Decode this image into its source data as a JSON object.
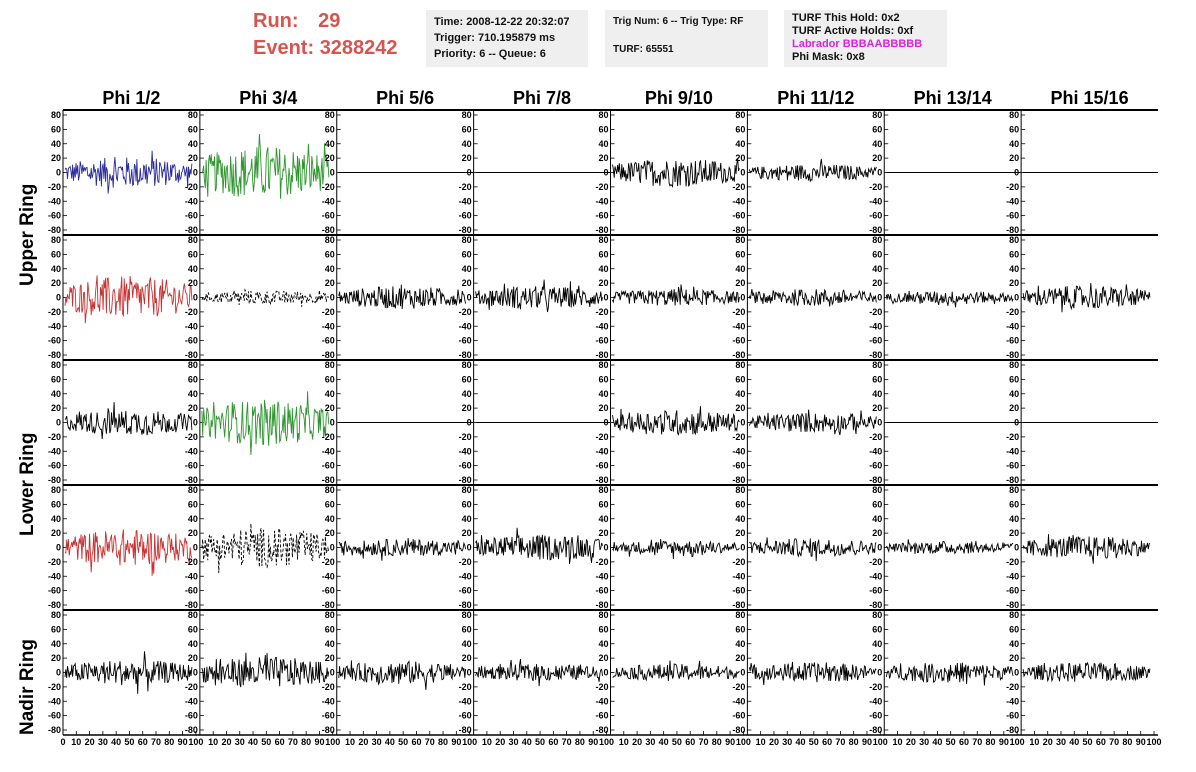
{
  "header": {
    "run_label": "Run:",
    "run_value": "29",
    "event_label": "Event:",
    "event_value": "3288242",
    "time": "Time: 2008-12-22 20:32:07",
    "trigger": "Trigger: 710.195879 ms",
    "priority": "Priority: 6 -- Queue: 6",
    "trig_num": "Trig Num: 6 -- Trig Type: RF",
    "turf": "TURF: 65551",
    "turf_this_hold": "TURF This Hold: 0x2",
    "turf_active_holds": "TURF Active Holds: 0xf",
    "labrador": "Labrador BBBAABBBBB",
    "phi_mask": "Phi Mask: 0x8"
  },
  "columns": [
    "Phi 1/2",
    "Phi 3/4",
    "Phi 5/6",
    "Phi 7/8",
    "Phi 9/10",
    "Phi 11/12",
    "Phi 13/14",
    "Phi 15/16"
  ],
  "ring_labels": [
    "Upper Ring",
    "Lower Ring",
    "Nadir Ring"
  ],
  "chart_data": {
    "type": "line",
    "title": "",
    "ylim": [
      -80,
      80
    ],
    "xlim": [
      0,
      100
    ],
    "y_ticks": [
      80,
      60,
      40,
      20,
      0,
      -20,
      -40,
      -60,
      -80
    ],
    "x_ticks": [
      0,
      10,
      20,
      30,
      40,
      50,
      60,
      70,
      80,
      90,
      100
    ],
    "grid": false,
    "colors": {
      "blue": "#2b2b9a",
      "green": "#2e962e",
      "red": "#c83232",
      "black": "#000000"
    },
    "panels": [
      [
        {
          "style": "blue",
          "amp": 22
        },
        {
          "style": "green",
          "amp": 38
        },
        {
          "style": "flat",
          "amp": 0
        },
        {
          "style": "flat",
          "amp": 0
        },
        {
          "style": "black",
          "amp": 20
        },
        {
          "style": "black",
          "amp": 12
        },
        {
          "style": "flat",
          "amp": 0
        },
        {
          "style": "flat",
          "amp": 0
        }
      ],
      [
        {
          "style": "red",
          "amp": 30
        },
        {
          "style": "dashed",
          "amp": 10
        },
        {
          "style": "black",
          "amp": 16
        },
        {
          "style": "black",
          "amp": 16
        },
        {
          "style": "black",
          "amp": 12
        },
        {
          "style": "black",
          "amp": 12
        },
        {
          "style": "black",
          "amp": 9
        },
        {
          "style": "black",
          "amp": 16
        }
      ],
      [
        {
          "style": "black",
          "amp": 18
        },
        {
          "style": "green",
          "amp": 32
        },
        {
          "style": "flat",
          "amp": 0
        },
        {
          "style": "flat",
          "amp": 0
        },
        {
          "style": "black",
          "amp": 18
        },
        {
          "style": "black",
          "amp": 14
        },
        {
          "style": "flat",
          "amp": 0
        },
        {
          "style": "flat",
          "amp": 0
        }
      ],
      [
        {
          "style": "red",
          "amp": 26
        },
        {
          "style": "dashed",
          "amp": 28
        },
        {
          "style": "black",
          "amp": 12
        },
        {
          "style": "black",
          "amp": 18
        },
        {
          "style": "black",
          "amp": 10
        },
        {
          "style": "black",
          "amp": 13
        },
        {
          "style": "black",
          "amp": 9
        },
        {
          "style": "black",
          "amp": 16
        }
      ],
      [
        {
          "style": "black",
          "amp": 18
        },
        {
          "style": "black",
          "amp": 22
        },
        {
          "style": "black",
          "amp": 16
        },
        {
          "style": "black",
          "amp": 12
        },
        {
          "style": "black",
          "amp": 12
        },
        {
          "style": "black",
          "amp": 14
        },
        {
          "style": "black",
          "amp": 14
        },
        {
          "style": "black",
          "amp": 14
        }
      ]
    ]
  }
}
